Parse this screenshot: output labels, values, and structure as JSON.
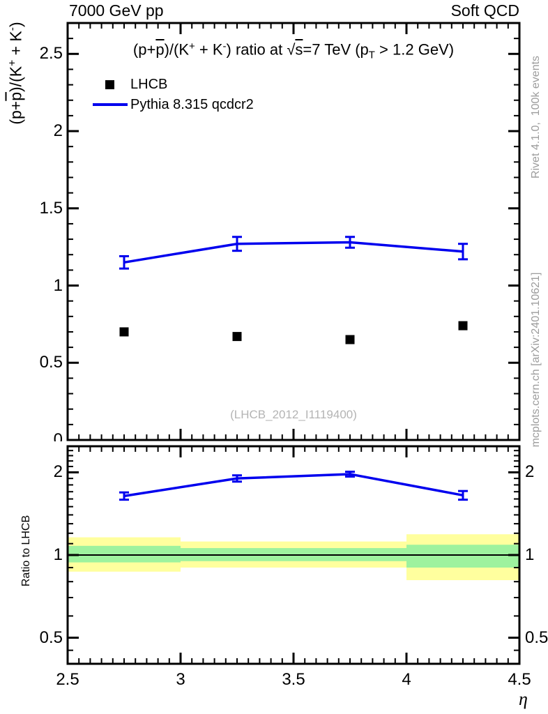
{
  "header": {
    "left": "7000 GeV pp",
    "right": "Soft QCD"
  },
  "side_notes": {
    "rivet": "Rivet 4.1.0,  100k events",
    "mcplots": "mcplots.cern.ch [arXiv:2401.10621]"
  },
  "watermark": "(LHCB_2012_I1119400)",
  "title_parts": [
    {
      "t": "(p+",
      "s": "n"
    },
    {
      "t": "p",
      "s": "ov"
    },
    {
      "t": ")/(K",
      "s": "n"
    },
    {
      "t": "+",
      "s": "sup"
    },
    {
      "t": " + K",
      "s": "n"
    },
    {
      "t": "-",
      "s": "sup"
    },
    {
      "t": ") ratio at ",
      "s": "n"
    },
    {
      "t": "√",
      "s": "n"
    },
    {
      "t": "s",
      "s": "ov"
    },
    {
      "t": "=7 TeV (p",
      "s": "n"
    },
    {
      "t": "T",
      "s": "sub"
    },
    {
      "t": " > 1.2 GeV)",
      "s": "n"
    }
  ],
  "legend": {
    "items": [
      {
        "label": "LHCB",
        "marker": "black-square",
        "color": "#000000"
      },
      {
        "label": "Pythia 8.315 qcdcr2",
        "marker": "blue-line",
        "color": "#0000ee"
      }
    ]
  },
  "chart_data": {
    "type": "line",
    "title": "(p+pbar)/(K+ + K-) ratio at sqrt(s)=7 TeV (pT > 1.2 GeV)",
    "x": {
      "label": "η",
      "range": [
        2.5,
        4.5
      ],
      "major_ticks": [
        2.5,
        3,
        3.5,
        4,
        4.5
      ],
      "tick_labels": [
        "2.5",
        "3",
        "3.5",
        "4",
        "4.5"
      ],
      "minor_step": 0.05
    },
    "main_panel": {
      "ylabel": "(p+pbar)/(K+ + K-)",
      "ylabel_parts": [
        {
          "t": "(p+",
          "s": "n"
        },
        {
          "t": "p",
          "s": "ov"
        },
        {
          "t": ")/(K",
          "s": "n"
        },
        {
          "t": "+",
          "s": "sup"
        },
        {
          "t": " + K",
          "s": "n"
        },
        {
          "t": "-",
          "s": "sup"
        },
        {
          "t": ")",
          "s": "n"
        }
      ],
      "scale": "linear",
      "ylim": [
        0,
        2.7
      ],
      "major_ticks": [
        0,
        0.5,
        1,
        1.5,
        2,
        2.5
      ],
      "tick_labels": [
        "0",
        "0.5",
        "1",
        "1.5",
        "2",
        "2.5"
      ],
      "minor_step": 0.1,
      "grid": false,
      "series": [
        {
          "name": "LHCB",
          "type": "scatter",
          "marker": "square",
          "color": "#000000",
          "x": [
            2.75,
            3.25,
            3.75,
            4.25
          ],
          "y": [
            0.7,
            0.67,
            0.65,
            0.74
          ]
        },
        {
          "name": "Pythia 8.315 qcdcr2",
          "type": "line",
          "color": "#0000ee",
          "x": [
            2.75,
            3.25,
            3.75,
            4.25
          ],
          "y": [
            1.15,
            1.27,
            1.28,
            1.22
          ],
          "yerr": [
            0.04,
            0.045,
            0.035,
            0.05
          ]
        }
      ]
    },
    "ratio_panel": {
      "label": "Ratio to LHCB",
      "scale": "log",
      "ylim": [
        0.4,
        2.49
      ],
      "major_ticks": [
        0.5,
        1,
        2
      ],
      "tick_labels": [
        "0.5",
        "1",
        "2"
      ],
      "minor_ticks": [
        0.45,
        0.6,
        0.7,
        0.8,
        0.9,
        1.1,
        1.2,
        1.3,
        1.4,
        1.5,
        1.6,
        1.7,
        1.8,
        1.9,
        2.1,
        2.2,
        2.3,
        2.4
      ],
      "reference_line": 1,
      "band_colors": {
        "outer": "#ffff9e",
        "inner": "#9ef29e"
      },
      "bands": [
        {
          "x": [
            2.5,
            3.0
          ],
          "outer": [
            0.87,
            1.16
          ],
          "inner": [
            0.94,
            1.08
          ]
        },
        {
          "x": [
            3.0,
            4.0
          ],
          "outer": [
            0.9,
            1.12
          ],
          "inner": [
            0.95,
            1.06
          ]
        },
        {
          "x": [
            4.0,
            4.5
          ],
          "outer": [
            0.81,
            1.19
          ],
          "inner": [
            0.9,
            1.09
          ]
        }
      ],
      "series": [
        {
          "name": "Pythia 8.315 qcdcr2",
          "type": "line",
          "color": "#0000ee",
          "x": [
            2.75,
            3.25,
            3.75,
            4.25
          ],
          "y": [
            1.64,
            1.9,
            1.97,
            1.65
          ],
          "yerr": [
            0.05,
            0.05,
            0.04,
            0.06
          ]
        }
      ]
    }
  }
}
